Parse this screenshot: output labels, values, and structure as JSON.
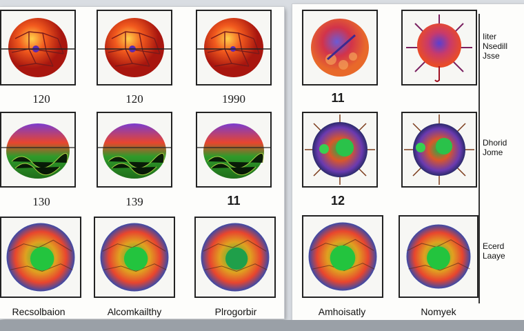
{
  "grid_labels": {
    "r1": [
      "120",
      "120",
      "1990",
      "11"
    ],
    "r2": [
      "130",
      "139",
      "11",
      "12"
    ]
  },
  "captions": [
    "Recsolbaion",
    "Alcomkailthy",
    "Plrogorbir",
    "Amhoisatly",
    "Nomyek"
  ],
  "side_legend": {
    "group1": [
      "Iiter",
      "Nsedill",
      "Jsse"
    ],
    "group2": [
      "Dhorid",
      "Jome"
    ],
    "group3": [
      "Ecerd",
      "Laaye"
    ]
  },
  "colors": {
    "panel_bg": "#fdfdfb",
    "tile_border": "#222222",
    "page_bg": "#d9dde2"
  }
}
